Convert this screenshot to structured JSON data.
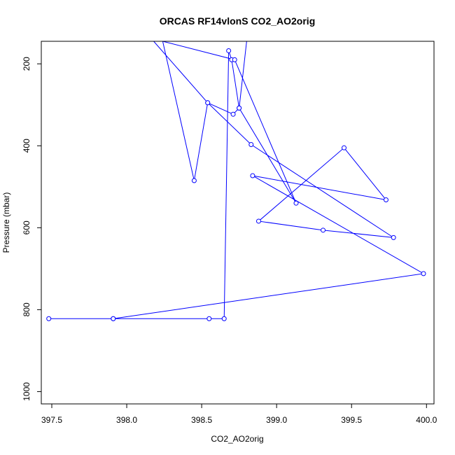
{
  "chart_data": {
    "type": "line",
    "title": "ORCAS RF14vlonS CO2_AO2orig",
    "xlabel": "CO2_AO2orig",
    "ylabel": "Pressure (mbar)",
    "xlim": [
      397.43,
      400.05
    ],
    "ylim": [
      1030,
      145
    ],
    "y_inverted": true,
    "x_ticks": [
      397.5,
      398.0,
      398.5,
      399.0,
      399.5,
      400.0
    ],
    "x_tick_labels": [
      "397.5",
      "398.0",
      "398.5",
      "399.0",
      "399.5",
      "400.0"
    ],
    "y_ticks": [
      200,
      400,
      600,
      800,
      1000
    ],
    "y_tick_labels": [
      "200",
      "400",
      "600",
      "800",
      "1000"
    ],
    "grid": false,
    "series_color": "#0000ff",
    "marker": "open-circle",
    "series": [
      {
        "name": "",
        "x": [
          398.18,
          398.54,
          398.71,
          398.75,
          398.7,
          398.68,
          398.65,
          398.55,
          397.91,
          397.48,
          397.91,
          399.98,
          398.84,
          399.73,
          399.45,
          398.88,
          399.31,
          399.78,
          398.83,
          398.54,
          398.45,
          398.24,
          398.72,
          399.13,
          398.75,
          398.8,
          399.2
        ],
        "y": [
          145,
          295,
          323,
          308,
          190,
          168,
          822,
          822,
          822,
          822,
          822,
          712,
          473,
          532,
          405,
          584,
          606,
          624,
          397,
          295,
          485,
          145,
          190,
          540,
          308,
          145,
          145
        ],
        "draw_marker": [
          false,
          true,
          true,
          true,
          true,
          true,
          true,
          true,
          true,
          true,
          true,
          true,
          true,
          true,
          true,
          true,
          true,
          true,
          true,
          true,
          true,
          false,
          true,
          true,
          true,
          false,
          false
        ]
      }
    ]
  }
}
